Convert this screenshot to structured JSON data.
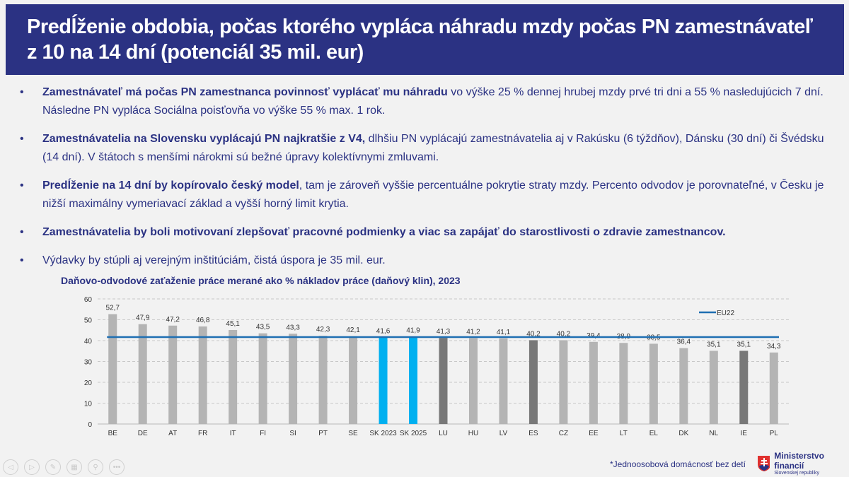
{
  "title": "Predĺženie obdobia, počas ktorého vypláca náhradu mzdy počas PN zamestnávateľ z 10 na 14 dní (potenciál 35 mil. eur)",
  "bullets": [
    {
      "bold": "Zamestnávateľ má počas PN zamestnanca povinnosť vyplácať mu náhradu",
      "text": " vo výške 25 % dennej hrubej mzdy prvé tri dni a 55 % nasledujúcich 7 dní. Následne PN vypláca Sociálna poisťovňa vo výške 55 % max. 1 rok."
    },
    {
      "bold": "Zamestnávatelia na Slovensku vyplácajú PN najkratšie z V4,",
      "text": " dlhšiu PN vyplácajú zamestnávatelia aj v Rakúsku (6 týždňov), Dánsku (30 dní) či Švédsku (14 dní). V štátoch s menšími nárokmi sú bežné úpravy kolektívnymi zmluvami."
    },
    {
      "bold": "Predĺženie na 14 dní by kopírovalo český model",
      "text": ", tam je zároveň vyššie percentuálne pokrytie straty mzdy. Percento odvodov je porovnateľné, v Česku je nižší maximálny vymeriavací základ a vyšší horný limit krytia."
    },
    {
      "bold": "Zamestnávatelia by boli motivovaní zlepšovať pracovné podmienky a viac sa zapájať do starostlivosti o zdravie zamestnancov.",
      "text": ""
    },
    {
      "bold": "",
      "text": "Výdavky by stúpli aj verejným inštitúciám, čistá úspora je 35 mil. eur."
    }
  ],
  "chart_data": {
    "type": "bar",
    "title": "Daňovo-odvodové zaťaženie práce merané ako % nákladov práce (daňový klin), 2023",
    "categories": [
      "BE",
      "DE",
      "AT",
      "FR",
      "IT",
      "FI",
      "SI",
      "PT",
      "SE",
      "SK 2023",
      "SK 2025",
      "LU",
      "HU",
      "LV",
      "ES",
      "CZ",
      "EE",
      "LT",
      "EL",
      "DK",
      "NL",
      "IE",
      "PL"
    ],
    "values": [
      52.7,
      47.9,
      47.2,
      46.8,
      45.1,
      43.5,
      43.3,
      42.3,
      42.1,
      41.6,
      41.9,
      41.3,
      41.2,
      41.1,
      40.2,
      40.2,
      39.4,
      38.9,
      38.5,
      36.4,
      35.1,
      35.1,
      34.3
    ],
    "labels": [
      "52,7",
      "47,9",
      "47,2",
      "46,8",
      "45,1",
      "43,5",
      "43,3",
      "42,3",
      "42,1",
      "41,6",
      "41,9",
      "41,3",
      "41,2",
      "41,1",
      "40,2",
      "40,2",
      "39,4",
      "38,9",
      "38,5",
      "36,4",
      "35,1",
      "35,1",
      "34,3"
    ],
    "bar_colors": {
      "default": "#b4b4b4",
      "highlight": "#00b0f0",
      "dark": "#787878"
    },
    "highlight": [
      "SK 2023",
      "SK 2025"
    ],
    "dark": [
      "LU",
      "ES",
      "IE"
    ],
    "reference_line": {
      "name": "EU22",
      "value": 41.7,
      "color": "#1f6fb2"
    },
    "ylim": [
      0,
      60
    ],
    "yticks": [
      0,
      10,
      20,
      30,
      40,
      50,
      60
    ],
    "grid": true,
    "legend": "top-right"
  },
  "footnote": "*Jednoosobová domácnosť bez detí",
  "logo": {
    "name": "Ministerstvo financií",
    "sub": "Slovenskej republiky"
  },
  "nav": [
    "prev-icon",
    "next-icon",
    "pen-icon",
    "slides-icon",
    "zoom-icon",
    "more-icon"
  ]
}
